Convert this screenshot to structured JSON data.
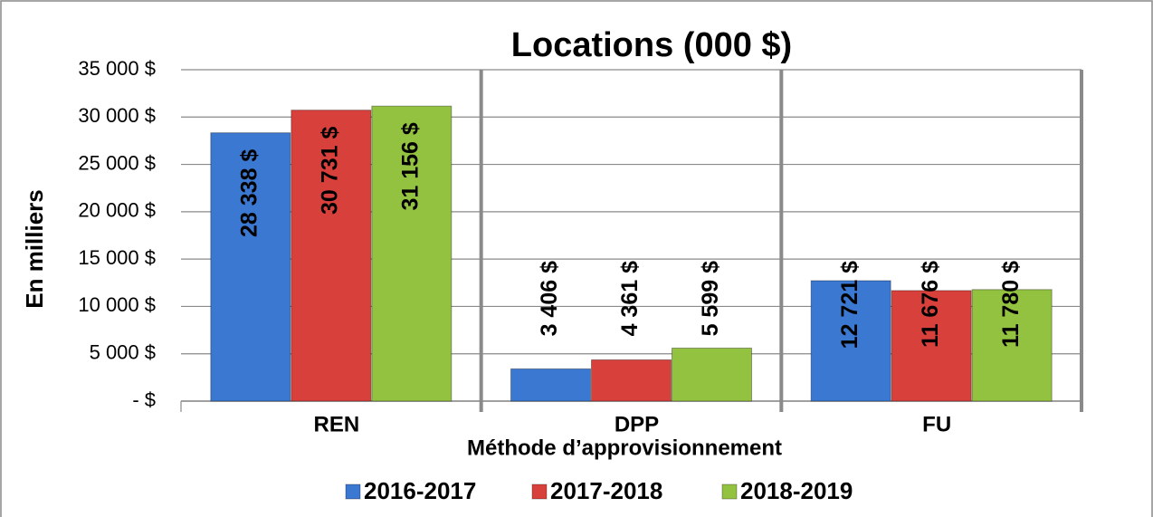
{
  "chart_data": {
    "type": "bar",
    "title": "Locations (000 $)",
    "x_label": "Méthode d’approvisionnement",
    "y_label": "En milliers",
    "categories": [
      "REN",
      "DPP",
      "FU"
    ],
    "series": [
      {
        "name": "2016-2017",
        "color": "#3b78d2",
        "values": [
          28338,
          3406,
          12721
        ],
        "value_labels": [
          "28 338 $",
          "3 406 $",
          "12 721 $"
        ]
      },
      {
        "name": "2017-2018",
        "color": "#d8403c",
        "values": [
          30731,
          4361,
          11676
        ],
        "value_labels": [
          "30 731 $",
          "4 361 $",
          "11 676 $"
        ]
      },
      {
        "name": "2018-2019",
        "color": "#93c140",
        "values": [
          31156,
          5599,
          11780
        ],
        "value_labels": [
          "31 156 $",
          "5 599 $",
          "11 780 $"
        ]
      }
    ],
    "ylim": [
      0,
      35000
    ],
    "yticks": [
      {
        "value": 0,
        "label": "-  $"
      },
      {
        "value": 5000,
        "label": "5 000  $"
      },
      {
        "value": 10000,
        "label": "10 000  $"
      },
      {
        "value": 15000,
        "label": "15 000  $"
      },
      {
        "value": 20000,
        "label": "20 000  $"
      },
      {
        "value": 25000,
        "label": "25 000  $"
      },
      {
        "value": 30000,
        "label": "30 000  $"
      },
      {
        "value": 35000,
        "label": "35 000  $"
      }
    ],
    "grid": true,
    "legend": "bottom"
  }
}
